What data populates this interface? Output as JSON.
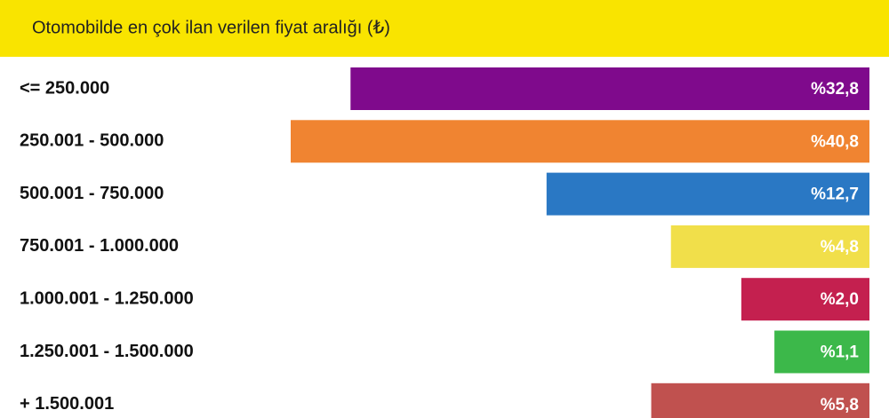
{
  "chart_data": {
    "type": "bar",
    "orientation": "horizontal",
    "title": "Otomobilde en çok ilan verilen fiyat aralığı (₺)",
    "categories": [
      "<= 250.000",
      "250.001 - 500.000",
      "500.001 - 750.000",
      "750.001 - 1.000.000",
      "1.000.001 - 1.250.000",
      "1.250.001 - 1.500.000",
      "+ 1.500.001"
    ],
    "values": [
      32.8,
      40.8,
      12.7,
      4.8,
      2.0,
      1.1,
      5.8
    ],
    "value_labels": [
      "%32,8",
      "%40,8",
      "%12,7",
      "%4,8",
      "%2,0",
      "%1,1",
      "%5,8"
    ],
    "colors": [
      "#7f0a8c",
      "#f08431",
      "#2a78c4",
      "#f1df4a",
      "#c4204f",
      "#3cb84a",
      "#c0514f"
    ],
    "title_band_color": "#f9e400"
  }
}
